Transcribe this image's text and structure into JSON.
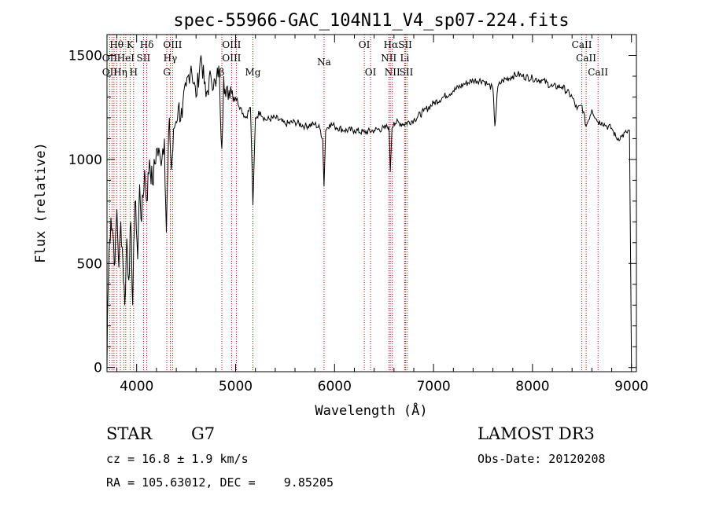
{
  "chart_data": {
    "type": "line",
    "title": "spec-55966-GAC_104N11_V4_sp07-224.fits",
    "xlabel": "Wavelength (Å)",
    "ylabel": "Flux (relative)",
    "xlim": [
      3700,
      9050
    ],
    "ylim": [
      -20,
      1600
    ],
    "x_ticks": [
      4000,
      5000,
      6000,
      7000,
      8000,
      9000
    ],
    "y_ticks": [
      0,
      500,
      1000,
      1500
    ],
    "y_tick_labels": [
      "0",
      "500",
      "1000",
      "1500"
    ],
    "series": [
      {
        "name": "flux",
        "x": [
          3700,
          3705,
          3720,
          3740,
          3760,
          3780,
          3800,
          3820,
          3840,
          3860,
          3880,
          3900,
          3920,
          3940,
          3960,
          3970,
          3990,
          4010,
          4030,
          4050,
          4080,
          4100,
          4130,
          4160,
          4200,
          4240,
          4280,
          4300,
          4330,
          4350,
          4380,
          4420,
          4460,
          4500,
          4550,
          4600,
          4650,
          4700,
          4750,
          4800,
          4830,
          4861,
          4880,
          4900,
          4950,
          5000,
          5050,
          5100,
          5150,
          5175,
          5200,
          5250,
          5300,
          5400,
          5500,
          5600,
          5700,
          5800,
          5850,
          5880,
          5893,
          5910,
          5950,
          6000,
          6100,
          6200,
          6300,
          6400,
          6500,
          6550,
          6563,
          6580,
          6600,
          6700,
          6800,
          6900,
          7000,
          7100,
          7200,
          7300,
          7400,
          7500,
          7550,
          7600,
          7620,
          7650,
          7700,
          7800,
          7850,
          7900,
          8000,
          8100,
          8200,
          8300,
          8400,
          8450,
          8500,
          8542,
          8600,
          8662,
          8700,
          8750,
          8800,
          8850,
          8900,
          8950,
          8980,
          9000
        ],
        "values": [
          0,
          250,
          550,
          720,
          650,
          500,
          760,
          480,
          700,
          520,
          300,
          620,
          420,
          700,
          300,
          600,
          800,
          520,
          880,
          700,
          950,
          800,
          1000,
          880,
          1050,
          1000,
          1100,
          650,
          1200,
          950,
          1150,
          1250,
          1200,
          1350,
          1450,
          1300,
          1500,
          1300,
          1400,
          1350,
          1450,
          1050,
          1400,
          1300,
          1350,
          1300,
          1250,
          1200,
          1250,
          780,
          1200,
          1230,
          1190,
          1200,
          1170,
          1180,
          1160,
          1170,
          1150,
          1100,
          870,
          1140,
          1170,
          1160,
          1140,
          1140,
          1130,
          1140,
          1150,
          1160,
          940,
          1150,
          1180,
          1170,
          1190,
          1230,
          1270,
          1300,
          1330,
          1360,
          1380,
          1380,
          1360,
          1340,
          1160,
          1350,
          1380,
          1400,
          1410,
          1400,
          1390,
          1380,
          1350,
          1350,
          1300,
          1240,
          1260,
          1160,
          1240,
          1180,
          1180,
          1160,
          1150,
          1100,
          1110,
          1130,
          1140,
          0
        ]
      }
    ],
    "line_labels": [
      {
        "text": "Hθ",
        "x": 3797,
        "row": 0
      },
      {
        "text": "K",
        "x": 3934,
        "row": 0
      },
      {
        "text": "Hδ",
        "x": 4102,
        "row": 0
      },
      {
        "text": "OIII",
        "x": 4363,
        "row": 0
      },
      {
        "text": "OIII",
        "x": 4959,
        "row": 0
      },
      {
        "text": "OI",
        "x": 6300,
        "row": 0
      },
      {
        "text": "HαSII",
        "x": 6640,
        "row": 0
      },
      {
        "text": "CaII",
        "x": 8498,
        "row": 0
      },
      {
        "text": "OII",
        "x": 3727,
        "row": 1
      },
      {
        "text": "HeI",
        "x": 3889,
        "row": 1
      },
      {
        "text": "SII",
        "x": 4069,
        "row": 1
      },
      {
        "text": "Hγ",
        "x": 4340,
        "row": 1
      },
      {
        "text": "OIII",
        "x": 4959,
        "row": 1
      },
      {
        "text": "NII",
        "x": 6548,
        "row": 1
      },
      {
        "text": "Li",
        "x": 6708,
        "row": 1
      },
      {
        "text": "CaII",
        "x": 8542,
        "row": 1
      },
      {
        "text": "OII",
        "x": 3727,
        "row": 2
      },
      {
        "text": "Hη",
        "x": 3835,
        "row": 2
      },
      {
        "text": "H",
        "x": 3969,
        "row": 2
      },
      {
        "text": "G",
        "x": 4304,
        "row": 2
      },
      {
        "text": "β",
        "x": 4861,
        "row": 2
      },
      {
        "text": "Mg",
        "x": 5175,
        "row": 2
      },
      {
        "text": "Na",
        "x": 5893,
        "row": 0.6
      },
      {
        "text": "OI",
        "x": 6364,
        "row": 2
      },
      {
        "text": "NII",
        "x": 6583,
        "row": 2
      },
      {
        "text": "SII",
        "x": 6725,
        "row": 2
      },
      {
        "text": "CaII",
        "x": 8662,
        "row": 2
      }
    ],
    "line_markers": [
      3727,
      3750,
      3771,
      3797,
      3835,
      3869,
      3889,
      3934,
      3969,
      4069,
      4102,
      4304,
      4340,
      4363,
      4861,
      4959,
      5007,
      5175,
      5893,
      6300,
      6364,
      6548,
      6563,
      6583,
      6708,
      6716,
      6731,
      8498,
      8542,
      8662
    ],
    "marker_color": "#cc0000"
  },
  "footer": {
    "obj_type": "STAR",
    "subclass": "G7",
    "survey": "LAMOST DR3",
    "cz": "cz = 16.8 ± 1.9 km/s",
    "obs_date": "Obs-Date: 20120208",
    "radec": "RA = 105.63012, DEC =    9.85205"
  }
}
